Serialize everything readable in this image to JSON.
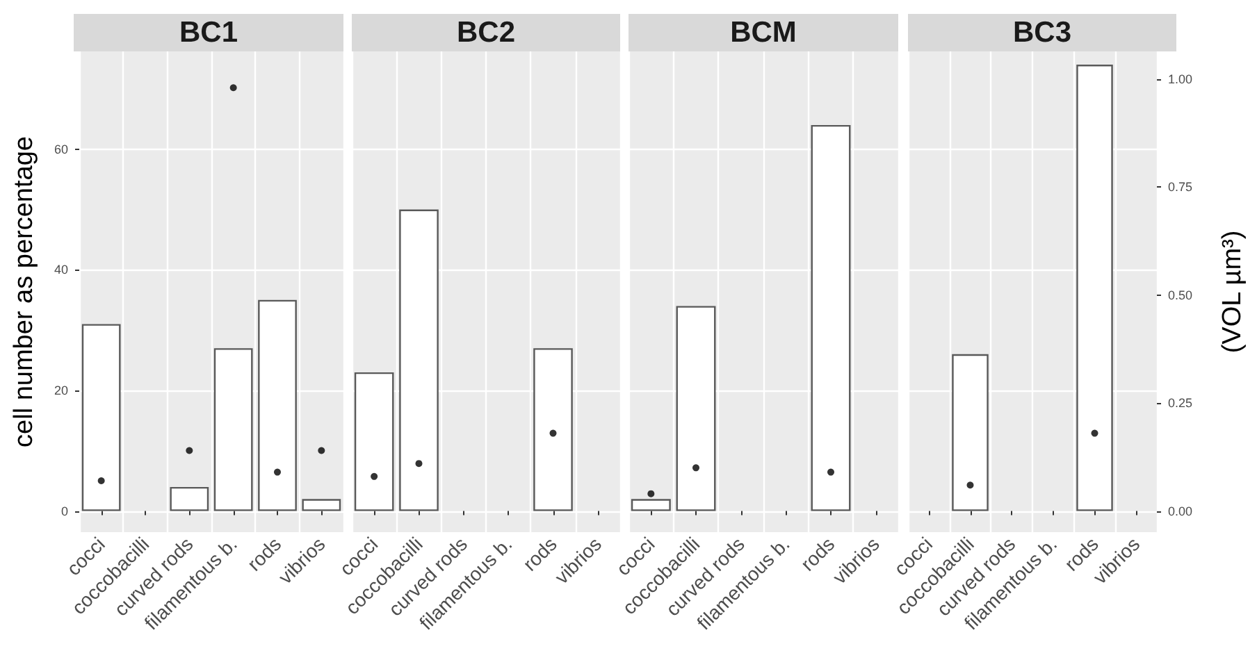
{
  "chart_data": [
    {
      "type": "bar",
      "title": "BC1",
      "ylabel": "cell number as percentage",
      "categories": [
        "cocci",
        "coccobacilli",
        "curved rods",
        "filamentous b.",
        "rods",
        "vibrios"
      ],
      "ylim": [
        -3.5,
        76.2
      ],
      "yticks": [
        0,
        20,
        40,
        60
      ],
      "y2lim": [
        -0.049,
        1.064
      ],
      "grid": true,
      "tick_labels": [
        "x",
        "y"
      ],
      "series": [
        {
          "color": "#ffffff",
          "values": [
            31,
            null,
            4,
            27,
            35,
            2
          ]
        },
        {
          "type": "scatter",
          "axis": "y2",
          "color": "#000000",
          "values": [
            0.07,
            null,
            0.14,
            0.98,
            0.09,
            0.14
          ]
        }
      ]
    },
    {
      "type": "bar",
      "title": "BC2",
      "categories": [
        "cocci",
        "coccobacilli",
        "curved rods",
        "filamentous b.",
        "rods",
        "vibrios"
      ],
      "ylim": [
        -3.5,
        76.2
      ],
      "y2lim": [
        -0.049,
        1.064
      ],
      "grid": true,
      "tick_labels": [
        "x"
      ],
      "series": [
        {
          "color": "#ffffff",
          "values": [
            23,
            50,
            null,
            null,
            27,
            null
          ]
        },
        {
          "type": "scatter",
          "axis": "y2",
          "color": "#000000",
          "values": [
            0.08,
            0.11,
            null,
            null,
            0.18,
            null
          ]
        }
      ]
    },
    {
      "type": "bar",
      "title": "BCM",
      "categories": [
        "cocci",
        "coccobacilli",
        "curved rods",
        "filamentous b.",
        "rods",
        "vibrios"
      ],
      "ylim": [
        -3.5,
        76.2
      ],
      "y2lim": [
        -0.049,
        1.064
      ],
      "grid": true,
      "tick_labels": [
        "x"
      ],
      "series": [
        {
          "color": "#ffffff",
          "values": [
            2,
            34,
            null,
            null,
            64,
            null
          ]
        },
        {
          "type": "scatter",
          "axis": "y2",
          "color": "#000000",
          "values": [
            0.04,
            0.1,
            null,
            null,
            0.09,
            null
          ]
        }
      ]
    },
    {
      "type": "bar",
      "title": "BC3",
      "y2label": "(VOL µm³)",
      "categories": [
        "cocci",
        "coccobacilli",
        "curved rods",
        "filamentous b.",
        "rods",
        "vibrios"
      ],
      "ylim": [
        -3.5,
        76.2
      ],
      "y2lim": [
        -0.049,
        1.064
      ],
      "y2ticks": [
        {
          "value": 0,
          "label": "0.00"
        },
        {
          "value": 0.25,
          "label": "0.25"
        },
        {
          "value": 0.5,
          "label": "0.50"
        },
        {
          "value": 0.75,
          "label": "0.75"
        },
        {
          "value": 1,
          "label": "1.00"
        }
      ],
      "grid": true,
      "tick_labels": [
        "x",
        "y2"
      ],
      "series": [
        {
          "color": "#ffffff",
          "values": [
            null,
            26,
            null,
            null,
            74,
            null
          ]
        },
        {
          "type": "scatter",
          "axis": "y2",
          "color": "#000000",
          "values": [
            null,
            0.06,
            null,
            null,
            0.18,
            null
          ]
        }
      ]
    }
  ]
}
